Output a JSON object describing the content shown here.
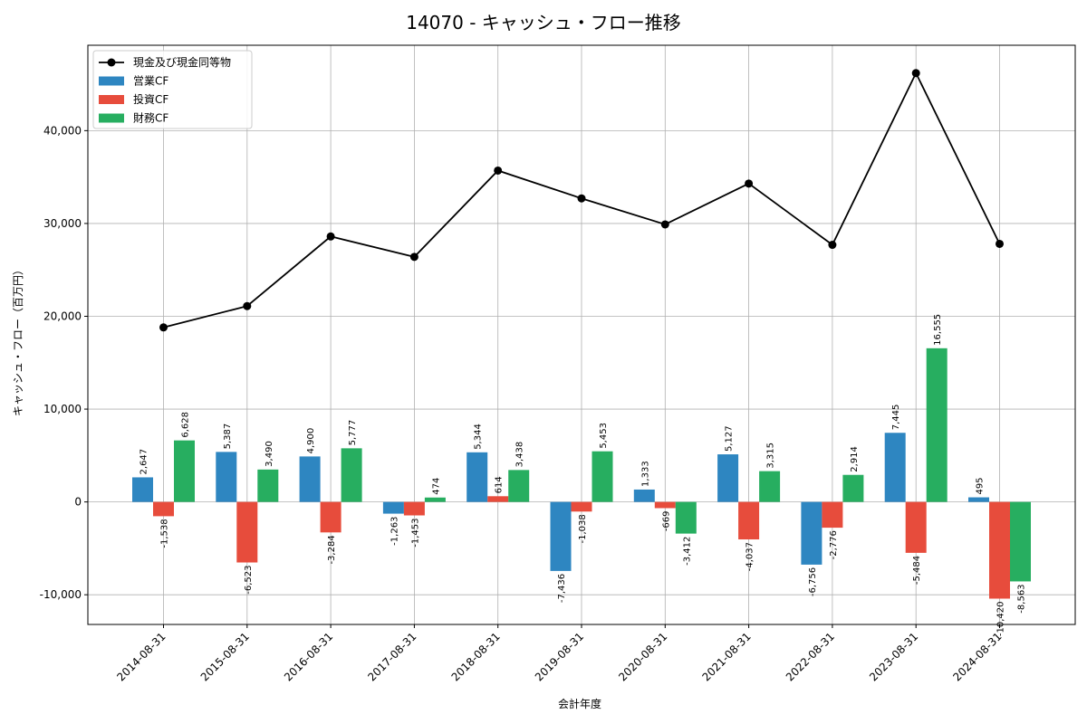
{
  "chart_data": {
    "type": "bar",
    "title": "14070 - キャッシュ・フロー推移",
    "xlabel": "会計年度",
    "ylabel": "キャッシュ・フロー（百万円）",
    "categories": [
      "2014-08-31",
      "2015-08-31",
      "2016-08-31",
      "2017-08-31",
      "2018-08-31",
      "2019-08-31",
      "2020-08-31",
      "2021-08-31",
      "2022-08-31",
      "2023-08-31",
      "2024-08-31"
    ],
    "ylim": [
      -13200,
      49200
    ],
    "yticks": [
      -10000,
      0,
      10000,
      20000,
      30000,
      40000
    ],
    "grid": true,
    "legend_position": "top-left",
    "series": [
      {
        "name": "営業CF",
        "type": "bar",
        "color": "#2e86c1",
        "values": [
          2647,
          5387,
          4900,
          -1263,
          5344,
          -7436,
          1333,
          5127,
          -6756,
          7445,
          495
        ],
        "labels": [
          "2,647",
          "5,387",
          "4,900",
          "-1,263",
          "5,344",
          "-7,436",
          "1,333",
          "5,127",
          "-6,756",
          "7,445",
          "495"
        ]
      },
      {
        "name": "投資CF",
        "type": "bar",
        "color": "#e74c3c",
        "values": [
          -1538,
          -6523,
          -3284,
          -1453,
          614,
          -1038,
          -669,
          -4037,
          -2776,
          -5484,
          -10420
        ],
        "labels": [
          "-1,538",
          "-6,523",
          "-3,284",
          "-1,453",
          "614",
          "-1,038",
          "-669",
          "-4,037",
          "-2,776",
          "-5,484",
          "-10,420"
        ]
      },
      {
        "name": "財務CF",
        "type": "bar",
        "color": "#27ae60",
        "values": [
          6628,
          3490,
          5777,
          474,
          3438,
          5453,
          -3412,
          3315,
          2914,
          16555,
          -8563
        ],
        "labels": [
          "6,628",
          "3,490",
          "5,777",
          "474",
          "3,438",
          "5,453",
          "-3,412",
          "3,315",
          "2,914",
          "16,555",
          "-8,563"
        ]
      },
      {
        "name": "現金及び現金同等物",
        "type": "line",
        "color": "#000000",
        "values": [
          18800,
          21100,
          28600,
          26400,
          35700,
          32700,
          29900,
          34300,
          27700,
          46200,
          27800
        ]
      }
    ]
  }
}
